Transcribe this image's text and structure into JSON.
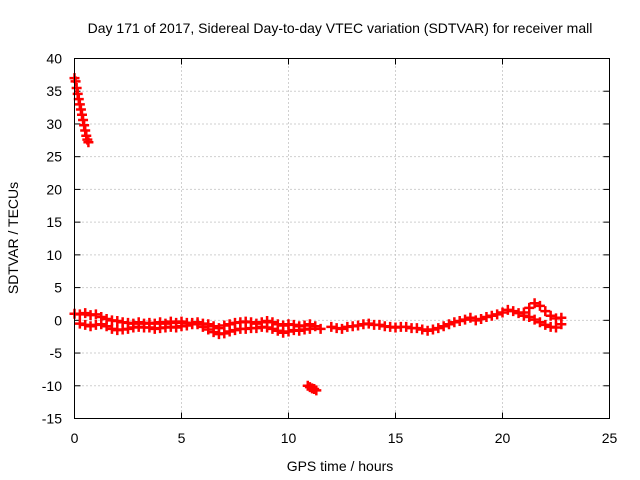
{
  "chart_data": {
    "type": "scatter",
    "title": "Day 171 of 2017, Sidereal Day-to-day VTEC variation (SDTVAR) for receiver mall",
    "xlabel": "GPS time / hours",
    "ylabel": "SDTVAR / TECUs",
    "xlim": [
      0,
      25
    ],
    "ylim": [
      -15,
      40
    ],
    "x_ticks": [
      0,
      5,
      10,
      15,
      20,
      25
    ],
    "y_ticks": [
      -15,
      -10,
      -5,
      0,
      5,
      10,
      15,
      20,
      25,
      30,
      35,
      40
    ],
    "grid": true,
    "marker": "plus",
    "marker_color": "#ff0000",
    "series": [
      {
        "name": "mall",
        "points": [
          [
            0.0,
            37.0
          ],
          [
            0.05,
            36.5
          ],
          [
            0.1,
            35.5
          ],
          [
            0.15,
            34.6
          ],
          [
            0.2,
            33.8
          ],
          [
            0.25,
            33.0
          ],
          [
            0.3,
            32.2
          ],
          [
            0.35,
            31.4
          ],
          [
            0.4,
            30.6
          ],
          [
            0.45,
            29.8
          ],
          [
            0.5,
            29.0
          ],
          [
            0.55,
            28.2
          ],
          [
            0.6,
            27.6
          ],
          [
            0.65,
            27.2
          ],
          [
            0.0,
            1.0
          ],
          [
            0.25,
            0.9
          ],
          [
            0.5,
            1.1
          ],
          [
            0.75,
            0.8
          ],
          [
            1.0,
            0.9
          ],
          [
            1.25,
            0.5
          ],
          [
            1.5,
            0.2
          ],
          [
            1.75,
            0.0
          ],
          [
            2.0,
            -0.1
          ],
          [
            2.25,
            -0.3
          ],
          [
            2.5,
            -0.4
          ],
          [
            2.75,
            -0.5
          ],
          [
            3.0,
            -0.3
          ],
          [
            3.25,
            -0.5
          ],
          [
            3.5,
            -0.4
          ],
          [
            3.75,
            -0.5
          ],
          [
            4.0,
            -0.3
          ],
          [
            4.25,
            -0.5
          ],
          [
            4.5,
            -0.2
          ],
          [
            4.75,
            -0.4
          ],
          [
            5.0,
            -0.2
          ],
          [
            5.25,
            -0.4
          ],
          [
            5.5,
            -0.4
          ],
          [
            5.75,
            -0.3
          ],
          [
            6.0,
            -0.5
          ],
          [
            6.25,
            -0.6
          ],
          [
            6.5,
            -0.9
          ],
          [
            6.75,
            -1.2
          ],
          [
            7.0,
            -0.8
          ],
          [
            7.25,
            -0.6
          ],
          [
            7.5,
            -0.4
          ],
          [
            7.75,
            -0.3
          ],
          [
            8.0,
            -0.2
          ],
          [
            8.25,
            -0.3
          ],
          [
            8.5,
            -0.5
          ],
          [
            8.75,
            -0.3
          ],
          [
            9.0,
            -0.1
          ],
          [
            9.25,
            -0.3
          ],
          [
            9.5,
            -0.6
          ],
          [
            9.75,
            -0.8
          ],
          [
            10.0,
            -0.6
          ],
          [
            10.25,
            -0.7
          ],
          [
            10.5,
            -0.9
          ],
          [
            10.75,
            -0.8
          ],
          [
            11.0,
            -0.6
          ],
          [
            11.25,
            -0.9
          ],
          [
            11.5,
            -1.3
          ],
          [
            12.0,
            -1.0
          ],
          [
            12.25,
            -1.2
          ],
          [
            12.5,
            -1.3
          ],
          [
            12.75,
            -1.0
          ],
          [
            13.0,
            -0.9
          ],
          [
            13.25,
            -0.8
          ],
          [
            13.5,
            -0.6
          ],
          [
            13.75,
            -0.5
          ],
          [
            14.0,
            -0.7
          ],
          [
            14.25,
            -0.7
          ],
          [
            14.5,
            -0.9
          ],
          [
            14.75,
            -1.0
          ],
          [
            15.0,
            -1.1
          ],
          [
            15.25,
            -1.0
          ],
          [
            15.5,
            -1.0
          ],
          [
            15.75,
            -1.2
          ],
          [
            16.0,
            -1.2
          ],
          [
            16.25,
            -1.4
          ],
          [
            16.5,
            -1.6
          ],
          [
            16.75,
            -1.4
          ],
          [
            17.0,
            -1.2
          ],
          [
            17.25,
            -0.9
          ],
          [
            17.5,
            -0.6
          ],
          [
            17.75,
            -0.3
          ],
          [
            18.0,
            -0.1
          ],
          [
            18.25,
            0.1
          ],
          [
            18.5,
            0.4
          ],
          [
            18.75,
            0.0
          ],
          [
            19.0,
            0.2
          ],
          [
            19.25,
            0.5
          ],
          [
            19.5,
            0.7
          ],
          [
            19.75,
            0.9
          ],
          [
            20.0,
            1.2
          ],
          [
            20.25,
            1.6
          ],
          [
            20.5,
            1.4
          ],
          [
            20.75,
            1.1
          ],
          [
            21.0,
            1.2
          ],
          [
            21.25,
            1.9
          ],
          [
            21.5,
            2.6
          ],
          [
            21.75,
            2.2
          ],
          [
            22.0,
            1.4
          ],
          [
            22.25,
            0.7
          ],
          [
            22.5,
            0.3
          ],
          [
            22.75,
            0.4
          ],
          [
            0.25,
            -0.5
          ],
          [
            0.5,
            -0.7
          ],
          [
            0.75,
            -0.9
          ],
          [
            1.0,
            -0.7
          ],
          [
            1.25,
            -0.6
          ],
          [
            1.5,
            -0.9
          ],
          [
            1.75,
            -1.3
          ],
          [
            2.0,
            -1.5
          ],
          [
            2.25,
            -1.4
          ],
          [
            2.5,
            -1.3
          ],
          [
            2.75,
            -1.1
          ],
          [
            3.0,
            -1.0
          ],
          [
            3.25,
            -1.1
          ],
          [
            3.5,
            -1.1
          ],
          [
            3.75,
            -1.3
          ],
          [
            4.0,
            -1.2
          ],
          [
            4.25,
            -1.1
          ],
          [
            4.5,
            -1.0
          ],
          [
            4.75,
            -1.1
          ],
          [
            5.0,
            -0.9
          ],
          [
            5.25,
            -0.8
          ],
          [
            5.5,
            -0.6
          ],
          [
            5.75,
            -0.6
          ],
          [
            6.0,
            -1.0
          ],
          [
            6.25,
            -1.4
          ],
          [
            6.5,
            -1.8
          ],
          [
            6.75,
            -2.1
          ],
          [
            7.0,
            -2.0
          ],
          [
            7.25,
            -1.7
          ],
          [
            7.5,
            -1.5
          ],
          [
            7.75,
            -1.3
          ],
          [
            8.0,
            -1.3
          ],
          [
            8.25,
            -1.2
          ],
          [
            8.5,
            -1.2
          ],
          [
            8.75,
            -1.0
          ],
          [
            9.0,
            -1.1
          ],
          [
            9.25,
            -1.3
          ],
          [
            9.5,
            -1.6
          ],
          [
            9.75,
            -1.9
          ],
          [
            10.0,
            -1.7
          ],
          [
            10.25,
            -1.5
          ],
          [
            10.5,
            -1.6
          ],
          [
            10.75,
            -1.4
          ],
          [
            11.0,
            -1.3
          ],
          [
            21.0,
            0.7
          ],
          [
            21.25,
            0.5
          ],
          [
            21.5,
            0.1
          ],
          [
            21.75,
            -0.3
          ],
          [
            22.0,
            -0.7
          ],
          [
            22.25,
            -1.0
          ],
          [
            22.5,
            -1.1
          ],
          [
            22.75,
            -0.6
          ],
          [
            10.9,
            -10.0
          ],
          [
            11.0,
            -10.2
          ],
          [
            11.1,
            -10.4
          ],
          [
            11.2,
            -10.5
          ],
          [
            11.3,
            -10.7
          ]
        ]
      }
    ]
  }
}
